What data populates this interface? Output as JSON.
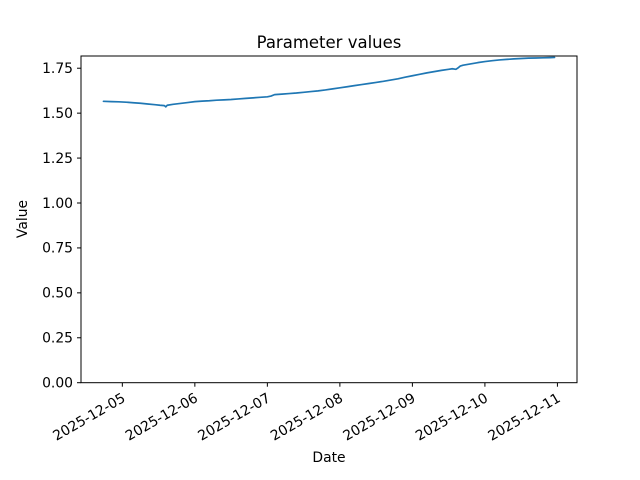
{
  "figure": {
    "title": "Parameter values",
    "xlabel": "Date",
    "ylabel": "Value"
  },
  "chart_data": {
    "type": "line",
    "title": "Parameter values",
    "xlabel": "Date",
    "ylabel": "Value",
    "legend": null,
    "grid": false,
    "line_color": "#1f77b4",
    "background_color": "#ffffff",
    "x_tick_labels": [
      "2025-12-05",
      "2025-12-06",
      "2025-12-07",
      "2025-12-08",
      "2025-12-09",
      "2025-12-10",
      "2025-12-11"
    ],
    "x_tick_rotation_deg": 30,
    "y_tick_labels": [
      "0.00",
      "0.25",
      "0.50",
      "0.75",
      "1.00",
      "1.25",
      "1.50",
      "1.75"
    ],
    "y_tick_values": [
      0,
      0.25,
      0.5,
      0.75,
      1.0,
      1.25,
      1.5,
      1.75
    ],
    "xlim_days_from_2025_12_05": [
      -0.57,
      6.27
    ],
    "ylim": [
      0,
      1.818
    ],
    "series": [
      {
        "name": "parameter-values",
        "x_days_from_2025_12_05": [
          -0.26,
          -0.15,
          -0.05,
          0.05,
          0.15,
          0.25,
          0.35,
          0.45,
          0.52,
          0.58,
          0.6,
          0.62,
          0.7,
          0.8,
          0.9,
          1.0,
          1.1,
          1.2,
          1.3,
          1.4,
          1.5,
          1.6,
          1.7,
          1.8,
          1.9,
          2.0,
          2.05,
          2.1,
          2.2,
          2.3,
          2.4,
          2.5,
          2.6,
          2.7,
          2.8,
          2.9,
          3.0,
          3.1,
          3.2,
          3.3,
          3.4,
          3.5,
          3.6,
          3.7,
          3.8,
          3.9,
          4.0,
          4.1,
          4.2,
          4.3,
          4.4,
          4.5,
          4.55,
          4.6,
          4.63,
          4.66,
          4.7,
          4.8,
          4.9,
          5.0,
          5.1,
          5.2,
          5.3,
          5.4,
          5.5,
          5.6,
          5.7,
          5.8,
          5.9,
          5.96
        ],
        "values": [
          1.566,
          1.564,
          1.563,
          1.561,
          1.558,
          1.555,
          1.551,
          1.547,
          1.544,
          1.542,
          1.535,
          1.544,
          1.549,
          1.554,
          1.559,
          1.564,
          1.567,
          1.569,
          1.572,
          1.574,
          1.576,
          1.579,
          1.582,
          1.585,
          1.588,
          1.591,
          1.595,
          1.603,
          1.606,
          1.609,
          1.612,
          1.616,
          1.62,
          1.624,
          1.629,
          1.635,
          1.641,
          1.647,
          1.653,
          1.659,
          1.665,
          1.671,
          1.677,
          1.684,
          1.691,
          1.7,
          1.708,
          1.716,
          1.724,
          1.731,
          1.738,
          1.744,
          1.747,
          1.744,
          1.752,
          1.762,
          1.767,
          1.774,
          1.781,
          1.787,
          1.792,
          1.796,
          1.799,
          1.802,
          1.804,
          1.806,
          1.807,
          1.808,
          1.809,
          1.81
        ]
      }
    ]
  }
}
